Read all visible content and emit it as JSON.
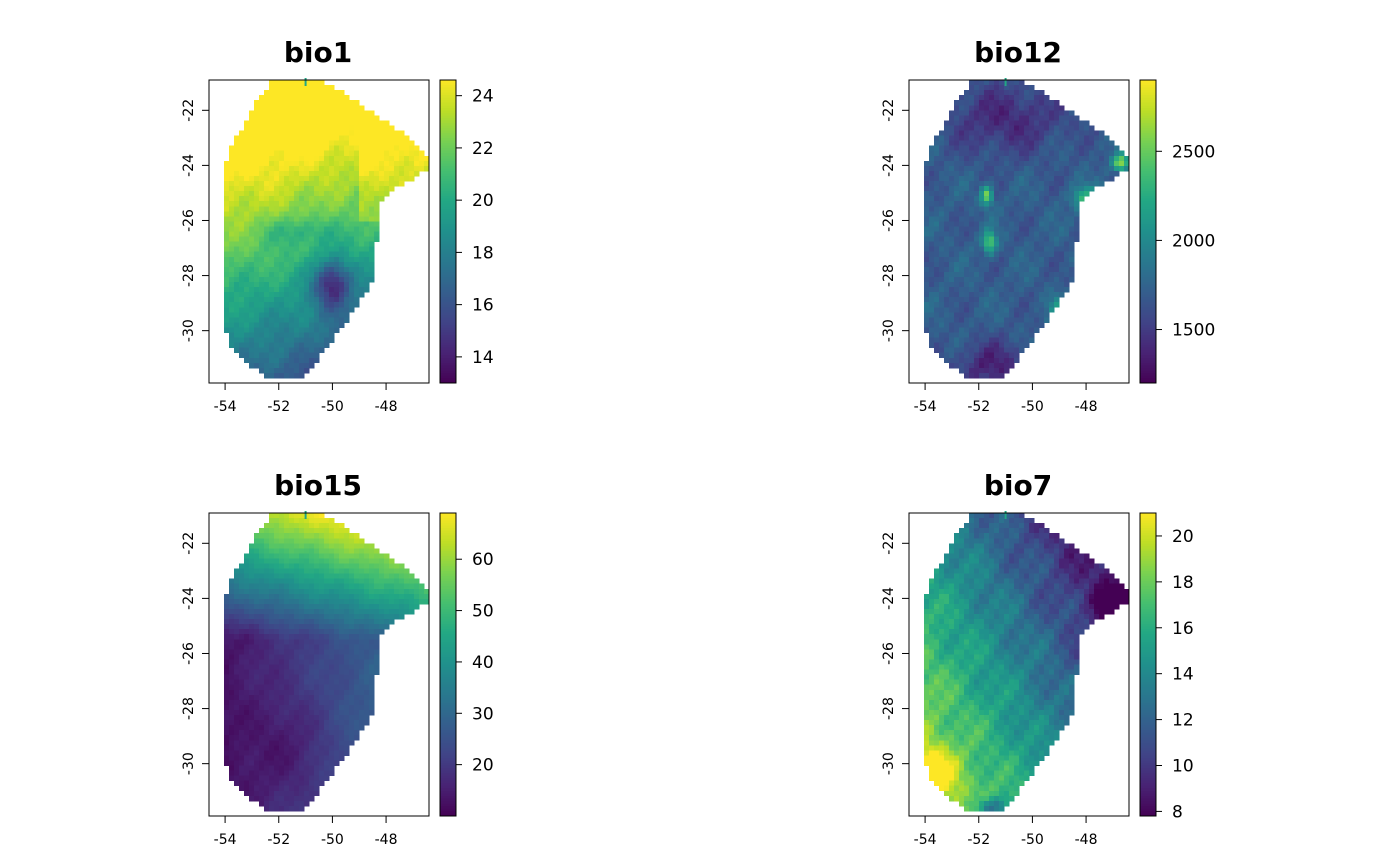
{
  "chart_data": [
    {
      "type": "heatmap",
      "title": "bio1",
      "x_ticks": [
        "-54",
        "-52",
        "-50",
        "-48"
      ],
      "x_tick_values": [
        -54,
        -52,
        -50,
        -48
      ],
      "y_ticks": [
        "-22",
        "-24",
        "-26",
        "-28",
        "-30"
      ],
      "y_tick_values": [
        -22,
        -24,
        -26,
        -28,
        -30
      ],
      "xlim": [
        -54.6,
        -46.4
      ],
      "ylim": [
        -31.9,
        -20.9
      ],
      "colorbar": {
        "range": [
          13,
          24.6
        ],
        "ticks": [
          "14",
          "16",
          "18",
          "20",
          "22",
          "24"
        ],
        "tick_values": [
          14,
          16,
          18,
          20,
          22,
          24
        ]
      },
      "colormap": "viridis",
      "field": "warm_north"
    },
    {
      "type": "heatmap",
      "title": "bio12",
      "x_ticks": [
        "-54",
        "-52",
        "-50",
        "-48"
      ],
      "x_tick_values": [
        -54,
        -52,
        -50,
        -48
      ],
      "y_ticks": [
        "-22",
        "-24",
        "-26",
        "-28",
        "-30"
      ],
      "y_tick_values": [
        -22,
        -24,
        -26,
        -28,
        -30
      ],
      "xlim": [
        -54.6,
        -46.4
      ],
      "ylim": [
        -31.9,
        -20.9
      ],
      "colorbar": {
        "range": [
          1200,
          2900
        ],
        "ticks": [
          "1500",
          "2000",
          "2500"
        ],
        "tick_values": [
          1500,
          2000,
          2500
        ]
      },
      "colormap": "viridis",
      "field": "wet_spots"
    },
    {
      "type": "heatmap",
      "title": "bio15",
      "x_ticks": [
        "-54",
        "-52",
        "-50",
        "-48"
      ],
      "x_tick_values": [
        -54,
        -52,
        -50,
        -48
      ],
      "y_ticks": [
        "-22",
        "-24",
        "-26",
        "-28",
        "-30"
      ],
      "y_tick_values": [
        -22,
        -24,
        -26,
        -28,
        -30
      ],
      "xlim": [
        -54.6,
        -46.4
      ],
      "ylim": [
        -31.9,
        -20.9
      ],
      "colorbar": {
        "range": [
          10,
          69
        ],
        "ticks": [
          "20",
          "30",
          "40",
          "50",
          "60"
        ],
        "tick_values": [
          20,
          30,
          40,
          50,
          60
        ]
      },
      "colormap": "viridis",
      "field": "seasonal_ne"
    },
    {
      "type": "heatmap",
      "title": "bio7",
      "x_ticks": [
        "-54",
        "-52",
        "-50",
        "-48"
      ],
      "x_tick_values": [
        -54,
        -52,
        -50,
        -48
      ],
      "y_ticks": [
        "-22",
        "-24",
        "-26",
        "-28",
        "-30"
      ],
      "y_tick_values": [
        -22,
        -24,
        -26,
        -28,
        -30
      ],
      "xlim": [
        -54.6,
        -46.4
      ],
      "ylim": [
        -31.9,
        -20.9
      ],
      "colorbar": {
        "range": [
          7.8,
          21
        ],
        "ticks": [
          "8",
          "10",
          "12",
          "14",
          "16",
          "18",
          "20"
        ],
        "tick_values": [
          8,
          10,
          12,
          14,
          16,
          18,
          20
        ]
      },
      "colormap": "viridis",
      "field": "range_sw"
    }
  ]
}
